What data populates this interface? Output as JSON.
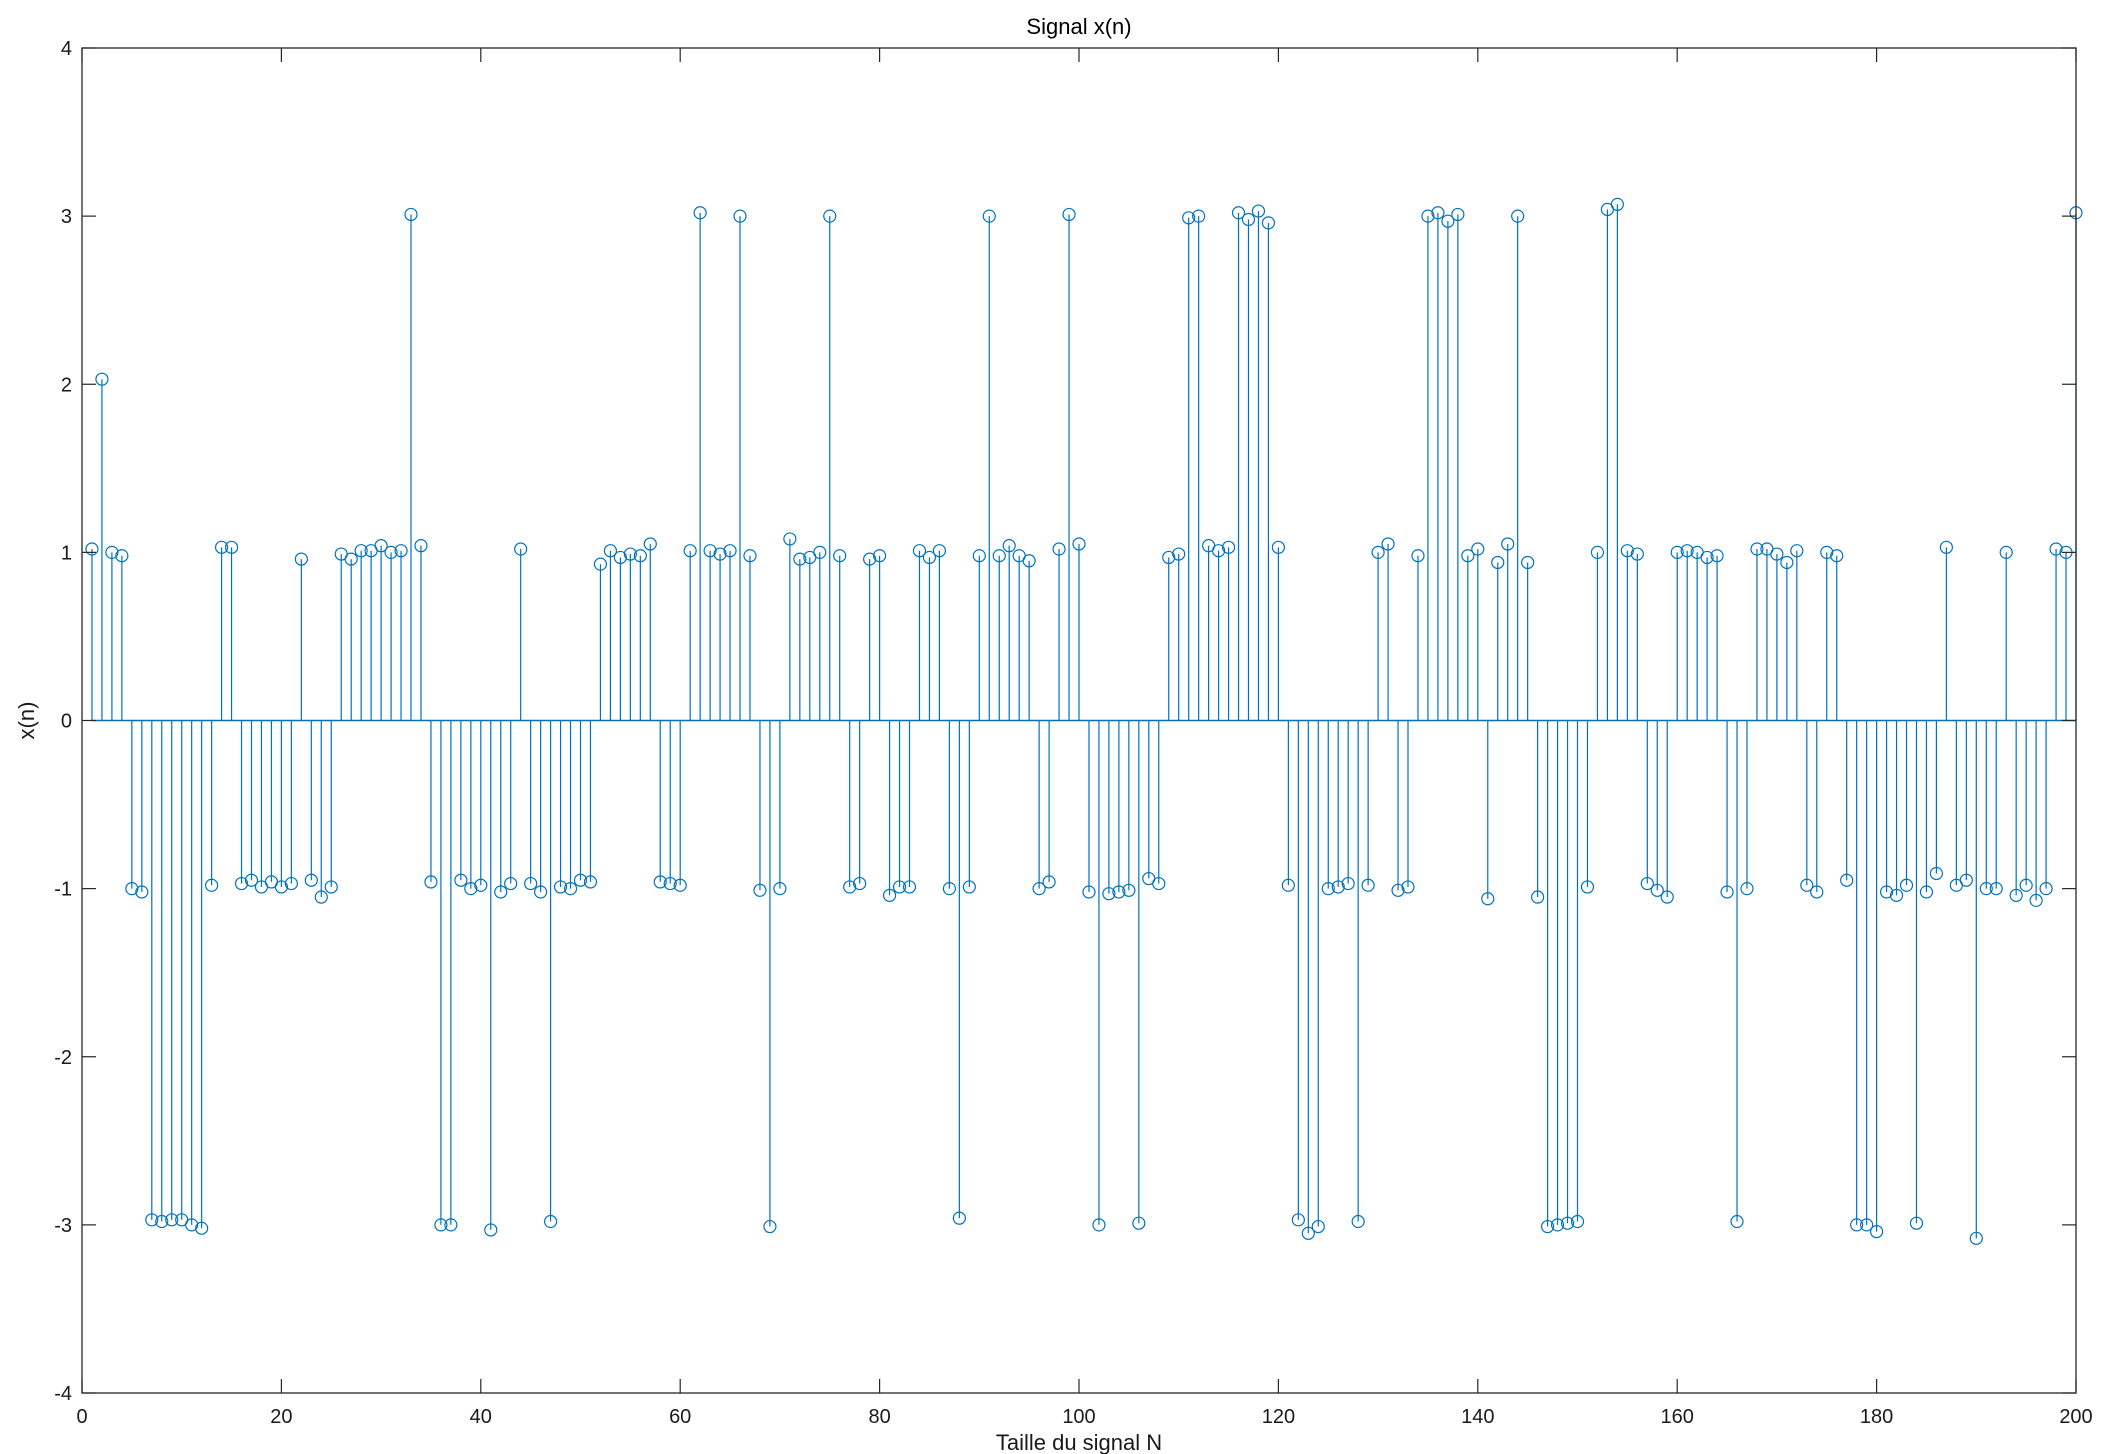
{
  "chart_data": {
    "type": "stem",
    "title": "Signal x(n)",
    "xlabel": "Taille du signal N",
    "ylabel": "x(n)",
    "xlim": [
      0,
      200
    ],
    "ylim": [
      -4,
      4
    ],
    "xticks": [
      0,
      20,
      40,
      60,
      80,
      100,
      120,
      140,
      160,
      180,
      200
    ],
    "yticks": [
      -4,
      -3,
      -2,
      -1,
      0,
      1,
      2,
      3,
      4
    ],
    "grid": false,
    "marker": "circle",
    "series_color": "#0072BD",
    "x_start": 1,
    "values": [
      1.02,
      2.03,
      1.0,
      0.98,
      -1.0,
      -1.02,
      -2.97,
      -2.98,
      -2.97,
      -2.97,
      -3.0,
      -3.02,
      -0.98,
      1.03,
      1.03,
      -0.97,
      -0.95,
      -0.99,
      -0.96,
      -0.99,
      -0.97,
      0.96,
      -0.95,
      -1.05,
      -0.99,
      0.99,
      0.96,
      1.01,
      1.01,
      1.04,
      1.0,
      1.01,
      3.01,
      1.04,
      -0.96,
      -3.0,
      -3.0,
      -0.95,
      -1.0,
      -0.98,
      -3.03,
      -1.02,
      -0.97,
      1.02,
      -0.97,
      -1.02,
      -2.98,
      -0.99,
      -1.0,
      -0.95,
      -0.96,
      0.93,
      1.01,
      0.97,
      0.99,
      0.98,
      1.05,
      -0.96,
      -0.97,
      -0.98,
      1.01,
      3.02,
      1.01,
      0.99,
      1.01,
      3.0,
      0.98,
      -1.01,
      -3.01,
      -1.0,
      1.08,
      0.96,
      0.97,
      1.0,
      3.0,
      0.98,
      -0.99,
      -0.97,
      0.96,
      0.98,
      -1.04,
      -0.99,
      -0.99,
      1.01,
      0.97,
      1.01,
      -1.0,
      -2.96,
      -0.99,
      0.98,
      3.0,
      0.98,
      1.04,
      0.98,
      0.95,
      -1.0,
      -0.96,
      1.02,
      3.01,
      1.05,
      -1.02,
      -3.0,
      -1.03,
      -1.02,
      -1.01,
      -2.99,
      -0.94,
      -0.97,
      0.97,
      0.99,
      2.99,
      3.0,
      1.04,
      1.01,
      1.03,
      3.02,
      2.98,
      3.03,
      2.96,
      1.03,
      -0.98,
      -2.97,
      -3.05,
      -3.01,
      -1.0,
      -0.99,
      -0.97,
      -2.98,
      -0.98,
      1.0,
      1.05,
      -1.01,
      -0.99,
      0.98,
      3.0,
      3.02,
      2.97,
      3.01,
      0.98,
      1.02,
      -1.06,
      0.94,
      1.05,
      3.0,
      0.94,
      -1.05,
      -3.01,
      -3.0,
      -2.99,
      -2.98,
      -0.99,
      1.0,
      3.04,
      3.07,
      1.01,
      0.99,
      -0.97,
      -1.01,
      -1.05,
      1.0,
      1.01,
      1.0,
      0.97,
      0.98,
      -1.02,
      -2.98,
      -1.0,
      1.02,
      1.02,
      0.99,
      0.94,
      1.01,
      -0.98,
      -1.02,
      1.0,
      0.98,
      -0.95,
      -3.0,
      -3.0,
      -3.04,
      -1.02,
      -1.04,
      -0.98,
      -2.99,
      -1.02,
      -0.91,
      1.03,
      -0.98,
      -0.95,
      -3.08,
      -1.0,
      -1.0,
      1.0,
      -1.04,
      -0.98,
      -1.07,
      -1.0,
      1.02,
      1.0,
      3.02
    ]
  }
}
